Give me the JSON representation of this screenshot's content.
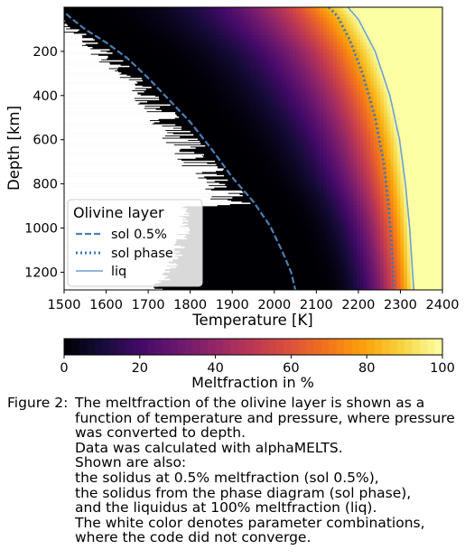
{
  "chart_data": {
    "type": "heatmap",
    "xlabel": "Temperature [K]",
    "ylabel": "Depth [km]",
    "xlim": [
      1500,
      2400
    ],
    "ylim": [
      1280,
      0
    ],
    "xticks": [
      1500,
      1600,
      1700,
      1800,
      1900,
      2000,
      2100,
      2200,
      2300,
      2400
    ],
    "yticks": [
      200,
      400,
      600,
      800,
      1000,
      1200
    ],
    "colorbar": {
      "label": "Meltfraction in %",
      "range": [
        0,
        100
      ],
      "ticks": [
        0,
        20,
        40,
        60,
        80,
        100
      ],
      "colormap": "inferno"
    },
    "legend": {
      "title": "Olivine layer",
      "placement": "lower-left",
      "entries": [
        {
          "label": "sol 0.5%",
          "style": "dashed"
        },
        {
          "label": "sol phase",
          "style": "dotted"
        },
        {
          "label": "liq",
          "style": "solid"
        }
      ]
    },
    "series": [
      {
        "name": "sol 0.5%",
        "color": "#4a7fb5",
        "points": [
          [
            1505,
            30
          ],
          [
            1520,
            55
          ],
          [
            1550,
            100
          ],
          [
            1600,
            160
          ],
          [
            1650,
            230
          ],
          [
            1700,
            320
          ],
          [
            1750,
            420
          ],
          [
            1800,
            520
          ],
          [
            1850,
            640
          ],
          [
            1900,
            770
          ],
          [
            1950,
            880
          ],
          [
            1990,
            990
          ],
          [
            2020,
            1110
          ],
          [
            2040,
            1200
          ],
          [
            2050,
            1280
          ]
        ]
      },
      {
        "name": "sol phase",
        "color": "#3a78b8",
        "points": [
          [
            2130,
            0
          ],
          [
            2150,
            40
          ],
          [
            2180,
            150
          ],
          [
            2210,
            300
          ],
          [
            2240,
            500
          ],
          [
            2260,
            700
          ],
          [
            2272,
            900
          ],
          [
            2280,
            1100
          ],
          [
            2285,
            1280
          ]
        ]
      },
      {
        "name": "liq",
        "color": "#6a9fd8",
        "points": [
          [
            2175,
            0
          ],
          [
            2200,
            55
          ],
          [
            2240,
            200
          ],
          [
            2275,
            400
          ],
          [
            2298,
            600
          ],
          [
            2312,
            800
          ],
          [
            2322,
            1000
          ],
          [
            2329,
            1200
          ],
          [
            2332,
            1280
          ]
        ]
      }
    ],
    "nonconverged_color": "#ffffff"
  },
  "caption": {
    "label": "Figure 2:",
    "lines": [
      "The meltfraction of the olivine layer is shown as a",
      "function of temperature and pressure, where pressure",
      "was converted to depth.",
      "Data was calculated with alphaMELTS.",
      "Shown are also:",
      "the solidus at 0.5% meltfraction (sol 0.5%),",
      "the solidus from the phase diagram (sol phase),",
      "and the liquidus at 100% meltfraction (liq).",
      "The white color denotes parameter combinations,",
      "where the code did not converge."
    ]
  }
}
